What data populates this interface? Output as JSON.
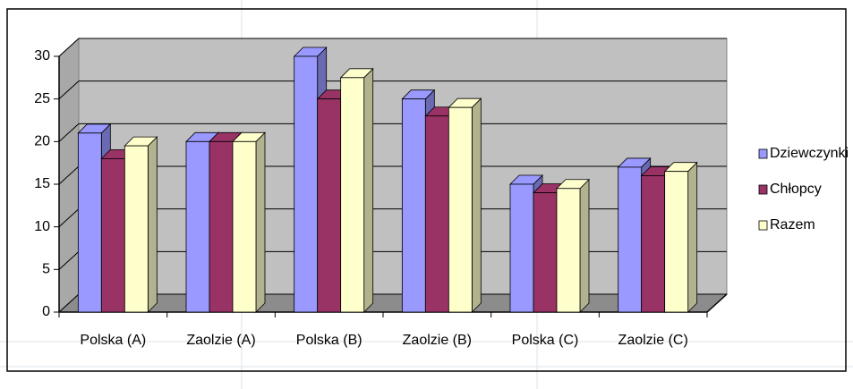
{
  "chart_data": {
    "type": "bar3d",
    "categories": [
      "Polska (A)",
      "Zaolzie (A)",
      "Polska (B)",
      "Zaolzie (B)",
      "Polska (C)",
      "Zaolzie (C)"
    ],
    "series": [
      {
        "name": "Dziewczynki",
        "color": "#9999ff",
        "values": [
          21,
          20,
          30,
          25,
          15,
          17
        ]
      },
      {
        "name": "Chłopcy",
        "color": "#993366",
        "values": [
          18,
          20,
          25,
          23,
          14,
          16
        ]
      },
      {
        "name": "Razem",
        "color": "#ffffcc",
        "values": [
          19.5,
          20,
          27.5,
          24,
          14.5,
          16.5
        ]
      }
    ],
    "ylim": [
      0,
      30
    ],
    "yticks": [
      0,
      5,
      10,
      15,
      20,
      25,
      30
    ],
    "grid": true,
    "legend": "right"
  }
}
